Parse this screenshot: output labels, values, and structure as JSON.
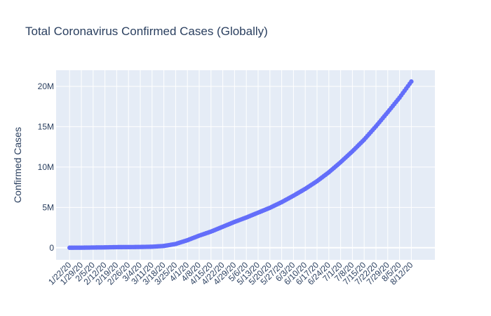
{
  "colors": {
    "plot_background": "#e5ecf6",
    "grid": "#ffffff",
    "marker": "#636efa",
    "text": "#2a3f5f"
  },
  "chart_data": {
    "type": "scatter",
    "title": "Total Coronavirus Confirmed Cases (Globally)",
    "xlabel": "",
    "ylabel": "Confirmed Cases",
    "x_type": "date",
    "x_range": [
      "2020-01-14",
      "2020-08-26"
    ],
    "ylim": [
      -1500000,
      22000000
    ],
    "grid": true,
    "legend": "none",
    "y_ticks": [
      {
        "value": 0,
        "label": "0"
      },
      {
        "value": 5000000,
        "label": "5M"
      },
      {
        "value": 10000000,
        "label": "10M"
      },
      {
        "value": 15000000,
        "label": "15M"
      },
      {
        "value": 20000000,
        "label": "20M"
      }
    ],
    "x_ticks": [
      {
        "value": "2020-01-22",
        "label": "1/22/20"
      },
      {
        "value": "2020-01-29",
        "label": "1/29/20"
      },
      {
        "value": "2020-02-05",
        "label": "2/5/20"
      },
      {
        "value": "2020-02-12",
        "label": "2/12/20"
      },
      {
        "value": "2020-02-19",
        "label": "2/19/20"
      },
      {
        "value": "2020-02-26",
        "label": "2/26/20"
      },
      {
        "value": "2020-03-04",
        "label": "3/4/20"
      },
      {
        "value": "2020-03-11",
        "label": "3/11/20"
      },
      {
        "value": "2020-03-18",
        "label": "3/18/20"
      },
      {
        "value": "2020-03-25",
        "label": "3/25/20"
      },
      {
        "value": "2020-04-01",
        "label": "4/1/20"
      },
      {
        "value": "2020-04-08",
        "label": "4/8/20"
      },
      {
        "value": "2020-04-15",
        "label": "4/15/20"
      },
      {
        "value": "2020-04-22",
        "label": "4/22/20"
      },
      {
        "value": "2020-04-29",
        "label": "4/29/20"
      },
      {
        "value": "2020-05-06",
        "label": "5/6/20"
      },
      {
        "value": "2020-05-13",
        "label": "5/13/20"
      },
      {
        "value": "2020-05-20",
        "label": "5/20/20"
      },
      {
        "value": "2020-05-27",
        "label": "5/27/20"
      },
      {
        "value": "2020-06-03",
        "label": "6/3/20"
      },
      {
        "value": "2020-06-10",
        "label": "6/10/20"
      },
      {
        "value": "2020-06-17",
        "label": "6/17/20"
      },
      {
        "value": "2020-06-24",
        "label": "6/24/20"
      },
      {
        "value": "2020-07-01",
        "label": "7/1/20"
      },
      {
        "value": "2020-07-08",
        "label": "7/8/20"
      },
      {
        "value": "2020-07-15",
        "label": "7/15/20"
      },
      {
        "value": "2020-07-22",
        "label": "7/22/20"
      },
      {
        "value": "2020-07-29",
        "label": "7/29/20"
      },
      {
        "value": "2020-08-05",
        "label": "8/5/20"
      },
      {
        "value": "2020-08-12",
        "label": "8/12/20"
      }
    ],
    "series": [
      {
        "points": [
          {
            "x": "2020-01-22",
            "y": 555
          },
          {
            "x": "2020-01-29",
            "y": 6166
          },
          {
            "x": "2020-02-05",
            "y": 28276
          },
          {
            "x": "2020-02-12",
            "y": 45221
          },
          {
            "x": "2020-02-19",
            "y": 75641
          },
          {
            "x": "2020-02-26",
            "y": 81397
          },
          {
            "x": "2020-03-04",
            "y": 95124
          },
          {
            "x": "2020-03-11",
            "y": 126214
          },
          {
            "x": "2020-03-18",
            "y": 218000
          },
          {
            "x": "2020-03-25",
            "y": 467000
          },
          {
            "x": "2020-04-01",
            "y": 932000
          },
          {
            "x": "2020-04-08",
            "y": 1500000
          },
          {
            "x": "2020-04-15",
            "y": 2000000
          },
          {
            "x": "2020-04-22",
            "y": 2600000
          },
          {
            "x": "2020-04-29",
            "y": 3200000
          },
          {
            "x": "2020-05-06",
            "y": 3750000
          },
          {
            "x": "2020-05-13",
            "y": 4350000
          },
          {
            "x": "2020-05-20",
            "y": 4950000
          },
          {
            "x": "2020-05-27",
            "y": 5650000
          },
          {
            "x": "2020-06-03",
            "y": 6450000
          },
          {
            "x": "2020-06-10",
            "y": 7300000
          },
          {
            "x": "2020-06-17",
            "y": 8250000
          },
          {
            "x": "2020-06-24",
            "y": 9350000
          },
          {
            "x": "2020-07-01",
            "y": 10600000
          },
          {
            "x": "2020-07-08",
            "y": 11950000
          },
          {
            "x": "2020-07-15",
            "y": 13400000
          },
          {
            "x": "2020-07-22",
            "y": 15050000
          },
          {
            "x": "2020-07-29",
            "y": 16800000
          },
          {
            "x": "2020-08-05",
            "y": 18600000
          },
          {
            "x": "2020-08-12",
            "y": 20600000
          }
        ]
      }
    ]
  }
}
